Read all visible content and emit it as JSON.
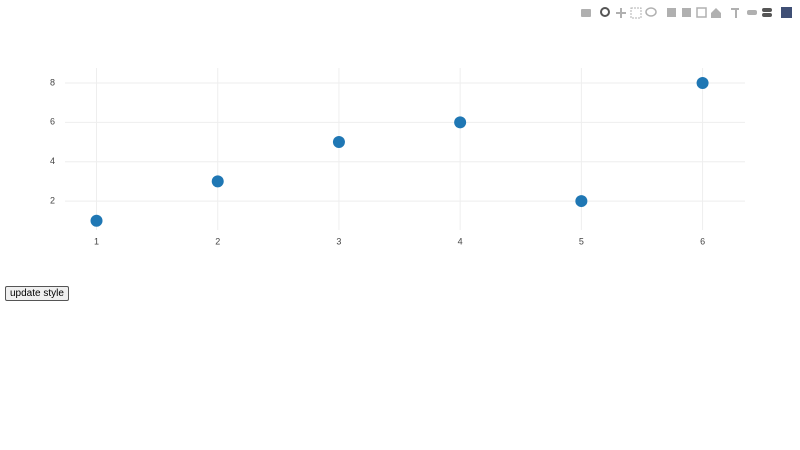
{
  "chart_data": {
    "type": "scatter",
    "x": [
      1,
      2,
      3,
      4,
      5,
      6
    ],
    "values": [
      1,
      3,
      5,
      6,
      2,
      8
    ],
    "color": "#1f77b4",
    "xlim": [
      0.74,
      6.35
    ],
    "xticks": [
      1,
      2,
      3,
      4,
      5,
      6
    ],
    "ylim": [
      0.53,
      8.76
    ],
    "yticks": [
      2,
      4,
      6,
      8
    ],
    "grid": true
  },
  "button": {
    "label": "update style"
  }
}
